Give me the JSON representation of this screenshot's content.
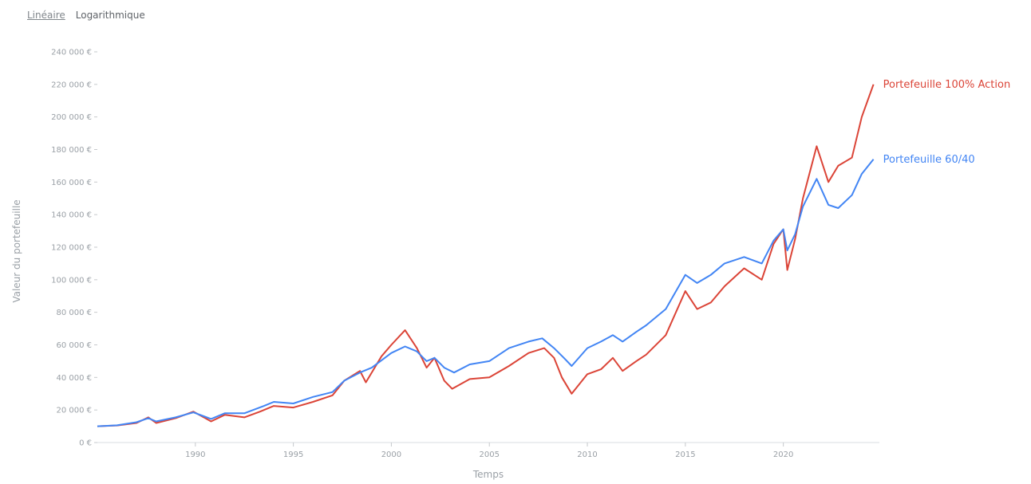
{
  "scale_toggle": {
    "linear_label": "Linéaire",
    "log_label": "Logarithmique",
    "selected": "Linéaire"
  },
  "chart_data": {
    "type": "line",
    "title": "",
    "xlabel": "Temps",
    "ylabel": "Valeur du portefeuille",
    "xlim": [
      1985.0,
      2024.9
    ],
    "ylim": [
      0,
      240000
    ],
    "x_ticks": [
      1990,
      1995,
      2000,
      2005,
      2010,
      2015,
      2020
    ],
    "y_ticks": [
      {
        "value": 0,
        "label": "0 €"
      },
      {
        "value": 20000,
        "label": "20 000 €"
      },
      {
        "value": 40000,
        "label": "40 000 €"
      },
      {
        "value": 60000,
        "label": "60 000 €"
      },
      {
        "value": 80000,
        "label": "80 000 €"
      },
      {
        "value": 100000,
        "label": "100 000 €"
      },
      {
        "value": 120000,
        "label": "120 000 €"
      },
      {
        "value": 140000,
        "label": "140 000 €"
      },
      {
        "value": 160000,
        "label": "160 000 €"
      },
      {
        "value": 180000,
        "label": "180 000 €"
      },
      {
        "value": 200000,
        "label": "200 000 €"
      },
      {
        "value": 220000,
        "label": "220 000 €"
      },
      {
        "value": 240000,
        "label": "240 000 €"
      }
    ],
    "grid": false,
    "legend": "line-end labels",
    "series": [
      {
        "name": "Portefeuille 100% Action",
        "color": "#db4437",
        "points": [
          [
            1985.0,
            10000
          ],
          [
            1986.0,
            10500
          ],
          [
            1987.0,
            12000
          ],
          [
            1987.6,
            15500
          ],
          [
            1988.0,
            12000
          ],
          [
            1989.0,
            15000
          ],
          [
            1989.9,
            19000
          ],
          [
            1990.8,
            13000
          ],
          [
            1991.5,
            17000
          ],
          [
            1992.5,
            15500
          ],
          [
            1993.3,
            19000
          ],
          [
            1994.0,
            22500
          ],
          [
            1995.0,
            21500
          ],
          [
            1996.0,
            25000
          ],
          [
            1997.0,
            29000
          ],
          [
            1997.6,
            38000
          ],
          [
            1998.4,
            44000
          ],
          [
            1998.7,
            37000
          ],
          [
            1999.5,
            53000
          ],
          [
            2000.0,
            60000
          ],
          [
            2000.7,
            69000
          ],
          [
            2001.3,
            58000
          ],
          [
            2001.8,
            46000
          ],
          [
            2002.2,
            52000
          ],
          [
            2002.7,
            38000
          ],
          [
            2003.1,
            33000
          ],
          [
            2004.0,
            39000
          ],
          [
            2005.0,
            40000
          ],
          [
            2006.0,
            47000
          ],
          [
            2007.0,
            55000
          ],
          [
            2007.8,
            58000
          ],
          [
            2008.3,
            52000
          ],
          [
            2008.7,
            40000
          ],
          [
            2009.2,
            30000
          ],
          [
            2010.0,
            42000
          ],
          [
            2010.7,
            45000
          ],
          [
            2011.3,
            52000
          ],
          [
            2011.8,
            44000
          ],
          [
            2012.5,
            50000
          ],
          [
            2013.0,
            54000
          ],
          [
            2014.0,
            66000
          ],
          [
            2015.0,
            93000
          ],
          [
            2015.6,
            82000
          ],
          [
            2016.3,
            86000
          ],
          [
            2017.0,
            96000
          ],
          [
            2018.0,
            107000
          ],
          [
            2018.9,
            100000
          ],
          [
            2019.5,
            122000
          ],
          [
            2020.0,
            131000
          ],
          [
            2020.2,
            106000
          ],
          [
            2020.6,
            125000
          ],
          [
            2021.0,
            150000
          ],
          [
            2021.7,
            182000
          ],
          [
            2022.3,
            160000
          ],
          [
            2022.8,
            170000
          ],
          [
            2023.5,
            175000
          ],
          [
            2024.0,
            200000
          ],
          [
            2024.6,
            220000
          ]
        ]
      },
      {
        "name": "Portefeuille 60/40",
        "color": "#4285f4",
        "points": [
          [
            1985.0,
            10000
          ],
          [
            1986.0,
            10600
          ],
          [
            1987.0,
            12500
          ],
          [
            1987.6,
            15000
          ],
          [
            1988.0,
            13000
          ],
          [
            1989.0,
            15500
          ],
          [
            1989.9,
            18500
          ],
          [
            1990.8,
            14500
          ],
          [
            1991.5,
            18000
          ],
          [
            1992.5,
            18000
          ],
          [
            1993.5,
            22500
          ],
          [
            1994.0,
            25000
          ],
          [
            1995.0,
            24000
          ],
          [
            1996.0,
            28000
          ],
          [
            1997.0,
            31000
          ],
          [
            1997.6,
            38000
          ],
          [
            1998.4,
            43000
          ],
          [
            1999.0,
            46000
          ],
          [
            2000.0,
            55000
          ],
          [
            2000.7,
            59000
          ],
          [
            2001.3,
            56000
          ],
          [
            2001.8,
            50000
          ],
          [
            2002.2,
            52000
          ],
          [
            2002.7,
            46000
          ],
          [
            2003.2,
            43000
          ],
          [
            2004.0,
            48000
          ],
          [
            2005.0,
            50000
          ],
          [
            2006.0,
            58000
          ],
          [
            2007.0,
            62000
          ],
          [
            2007.7,
            64000
          ],
          [
            2008.3,
            58000
          ],
          [
            2008.8,
            52000
          ],
          [
            2009.2,
            47000
          ],
          [
            2010.0,
            58000
          ],
          [
            2010.7,
            62000
          ],
          [
            2011.3,
            66000
          ],
          [
            2011.8,
            62000
          ],
          [
            2012.5,
            68000
          ],
          [
            2013.0,
            72000
          ],
          [
            2014.0,
            82000
          ],
          [
            2015.0,
            103000
          ],
          [
            2015.6,
            98000
          ],
          [
            2016.3,
            103000
          ],
          [
            2017.0,
            110000
          ],
          [
            2018.0,
            114000
          ],
          [
            2018.9,
            110000
          ],
          [
            2019.5,
            124000
          ],
          [
            2020.0,
            131000
          ],
          [
            2020.2,
            118000
          ],
          [
            2020.6,
            128000
          ],
          [
            2021.0,
            145000
          ],
          [
            2021.7,
            162000
          ],
          [
            2022.3,
            146000
          ],
          [
            2022.8,
            144000
          ],
          [
            2023.5,
            152000
          ],
          [
            2024.0,
            165000
          ],
          [
            2024.6,
            174000
          ]
        ]
      }
    ]
  }
}
